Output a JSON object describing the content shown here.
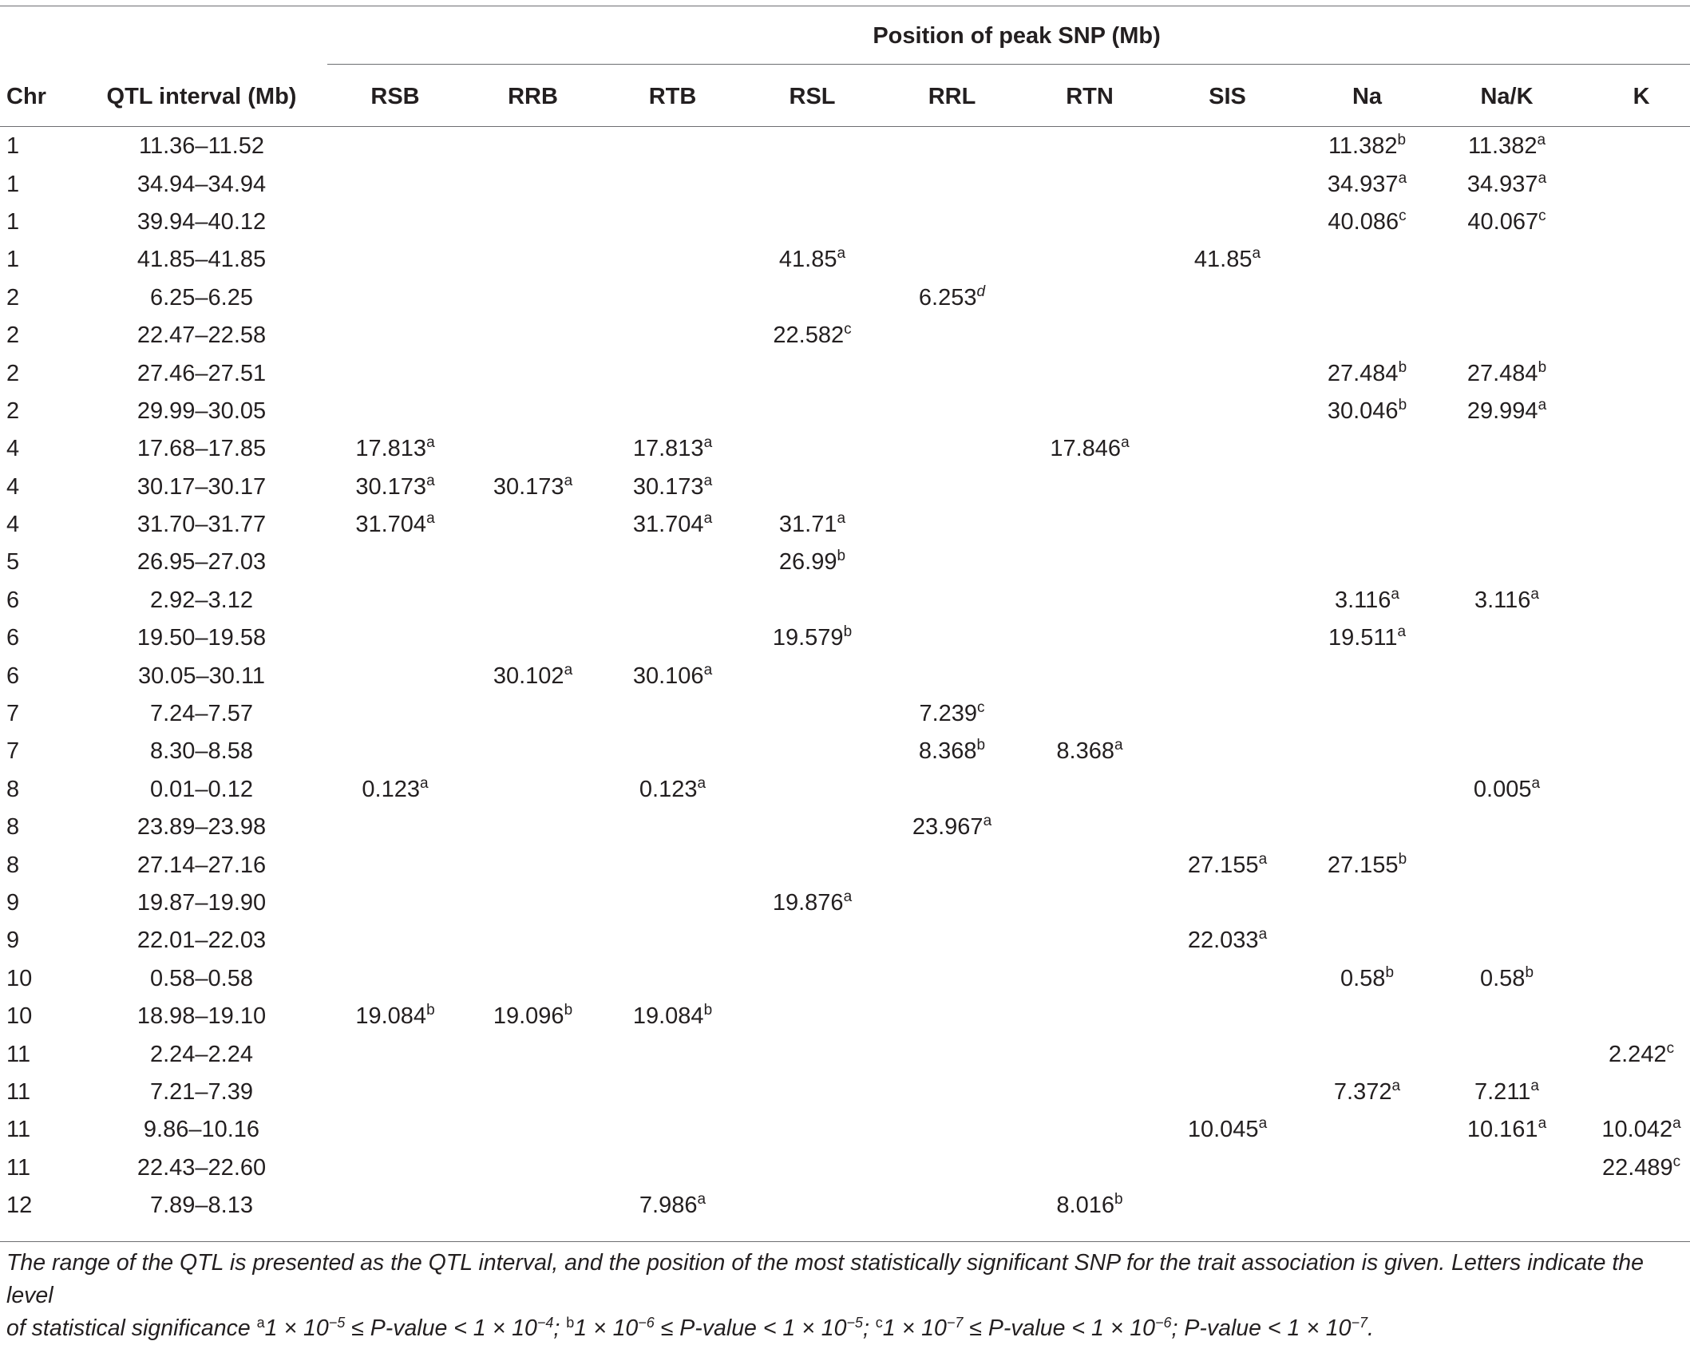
{
  "table": {
    "span_header": "Position of peak SNP (Mb)",
    "columns": [
      "Chr",
      "QTL interval (Mb)",
      "RSB",
      "RRB",
      "RTB",
      "RSL",
      "RRL",
      "RTN",
      "SIS",
      "Na",
      "Na/K",
      "K"
    ],
    "rows": [
      {
        "chr": "1",
        "interval": "11.36–11.52",
        "cells": {
          "Na": [
            "11.382",
            "b"
          ],
          "NaK": [
            "11.382",
            "a"
          ]
        }
      },
      {
        "chr": "1",
        "interval": "34.94–34.94",
        "cells": {
          "Na": [
            "34.937",
            "a"
          ],
          "NaK": [
            "34.937",
            "a"
          ]
        }
      },
      {
        "chr": "1",
        "interval": "39.94–40.12",
        "cells": {
          "Na": [
            "40.086",
            "c"
          ],
          "NaK": [
            "40.067",
            "c"
          ]
        }
      },
      {
        "chr": "1",
        "interval": "41.85–41.85",
        "cells": {
          "RSL": [
            "41.85",
            "a"
          ],
          "SIS": [
            "41.85",
            "a"
          ]
        }
      },
      {
        "chr": "2",
        "interval": "6.25–6.25",
        "cells": {
          "RRL": [
            "6.253",
            "d"
          ]
        }
      },
      {
        "chr": "2",
        "interval": "22.47–22.58",
        "cells": {
          "RSL": [
            "22.582",
            "c"
          ]
        }
      },
      {
        "chr": "2",
        "interval": "27.46–27.51",
        "cells": {
          "Na": [
            "27.484",
            "b"
          ],
          "NaK": [
            "27.484",
            "b"
          ]
        }
      },
      {
        "chr": "2",
        "interval": "29.99–30.05",
        "cells": {
          "Na": [
            "30.046",
            "b"
          ],
          "NaK": [
            "29.994",
            "a"
          ]
        }
      },
      {
        "chr": "4",
        "interval": "17.68–17.85",
        "cells": {
          "RSB": [
            "17.813",
            "a"
          ],
          "RTB": [
            "17.813",
            "a"
          ],
          "RTN": [
            "17.846",
            "a"
          ]
        }
      },
      {
        "chr": "4",
        "interval": "30.17–30.17",
        "cells": {
          "RSB": [
            "30.173",
            "a"
          ],
          "RRB": [
            "30.173",
            "a"
          ],
          "RTB": [
            "30.173",
            "a"
          ]
        }
      },
      {
        "chr": "4",
        "interval": "31.70–31.77",
        "cells": {
          "RSB": [
            "31.704",
            "a"
          ],
          "RTB": [
            "31.704",
            "a"
          ],
          "RSL": [
            "31.71",
            "a"
          ]
        }
      },
      {
        "chr": "5",
        "interval": "26.95–27.03",
        "cells": {
          "RSL": [
            "26.99",
            "b"
          ]
        }
      },
      {
        "chr": "6",
        "interval": "2.92–3.12",
        "cells": {
          "Na": [
            "3.116",
            "a"
          ],
          "NaK": [
            "3.116",
            "a"
          ]
        }
      },
      {
        "chr": "6",
        "interval": "19.50–19.58",
        "cells": {
          "RSL": [
            "19.579",
            "b"
          ],
          "Na": [
            "19.511",
            "a"
          ]
        }
      },
      {
        "chr": "6",
        "interval": "30.05–30.11",
        "cells": {
          "RRB": [
            "30.102",
            "a"
          ],
          "RTB": [
            "30.106",
            "a"
          ]
        }
      },
      {
        "chr": "7",
        "interval": "7.24–7.57",
        "cells": {
          "RRL": [
            "7.239",
            "c"
          ]
        }
      },
      {
        "chr": "7",
        "interval": "8.30–8.58",
        "cells": {
          "RRL": [
            "8.368",
            "b"
          ],
          "RTN": [
            "8.368",
            "a"
          ]
        }
      },
      {
        "chr": "8",
        "interval": "0.01–0.12",
        "cells": {
          "RSB": [
            "0.123",
            "a"
          ],
          "RTB": [
            "0.123",
            "a"
          ],
          "NaK": [
            "0.005",
            "a"
          ]
        }
      },
      {
        "chr": "8",
        "interval": "23.89–23.98",
        "cells": {
          "RRL": [
            "23.967",
            "a"
          ]
        }
      },
      {
        "chr": "8",
        "interval": "27.14–27.16",
        "cells": {
          "SIS": [
            "27.155",
            "a"
          ],
          "Na": [
            "27.155",
            "b"
          ]
        }
      },
      {
        "chr": "9",
        "interval": "19.87–19.90",
        "cells": {
          "RSL": [
            "19.876",
            "a"
          ]
        }
      },
      {
        "chr": "9",
        "interval": "22.01–22.03",
        "cells": {
          "SIS": [
            "22.033",
            "a"
          ]
        }
      },
      {
        "chr": "10",
        "interval": "0.58–0.58",
        "cells": {
          "Na": [
            "0.58",
            "b"
          ],
          "NaK": [
            "0.58",
            "b"
          ]
        }
      },
      {
        "chr": "10",
        "interval": "18.98–19.10",
        "cells": {
          "RSB": [
            "19.084",
            "b"
          ],
          "RRB": [
            "19.096",
            "b"
          ],
          "RTB": [
            "19.084",
            "b"
          ]
        }
      },
      {
        "chr": "11",
        "interval": "2.24–2.24",
        "cells": {
          "K": [
            "2.242",
            "c"
          ]
        }
      },
      {
        "chr": "11",
        "interval": "7.21–7.39",
        "cells": {
          "Na": [
            "7.372",
            "a"
          ],
          "NaK": [
            "7.211",
            "a"
          ]
        }
      },
      {
        "chr": "11",
        "interval": "9.86–10.16",
        "cells": {
          "SIS": [
            "10.045",
            "a"
          ],
          "NaK": [
            "10.161",
            "a"
          ],
          "K": [
            "10.042",
            "a"
          ]
        }
      },
      {
        "chr": "11",
        "interval": "22.43–22.60",
        "cells": {
          "K": [
            "22.489",
            "c"
          ]
        }
      },
      {
        "chr": "12",
        "interval": "7.89–8.13",
        "cells": {
          "RTB": [
            "7.986",
            "a"
          ],
          "RTN": [
            "8.016",
            "b"
          ]
        }
      }
    ]
  },
  "footnote": {
    "line1": "The range of the QTL is presented as the QTL interval, and the position of the most statistically significant SNP for the trait association is given. Letters indicate the level",
    "line2_prefix": "of statistical significance ",
    "levels": [
      {
        "letter": "a",
        "text": "1 × 10",
        "exp1": "−5",
        "mid": " ≤ P-value < 1 × 10",
        "exp2": "−4",
        "sep": "; "
      },
      {
        "letter": "b",
        "text": "1 × 10",
        "exp1": "−6",
        "mid": " ≤ P-value < 1 × 10",
        "exp2": "−5",
        "sep": "; "
      },
      {
        "letter": "c",
        "text": "1 × 10",
        "exp1": "−7",
        "mid": " ≤ P-value < 1 × 10",
        "exp2": "−6",
        "sep": "; "
      }
    ],
    "last": {
      "text": "P-value < 1 × 10",
      "exp": "−7",
      "end": "."
    }
  }
}
